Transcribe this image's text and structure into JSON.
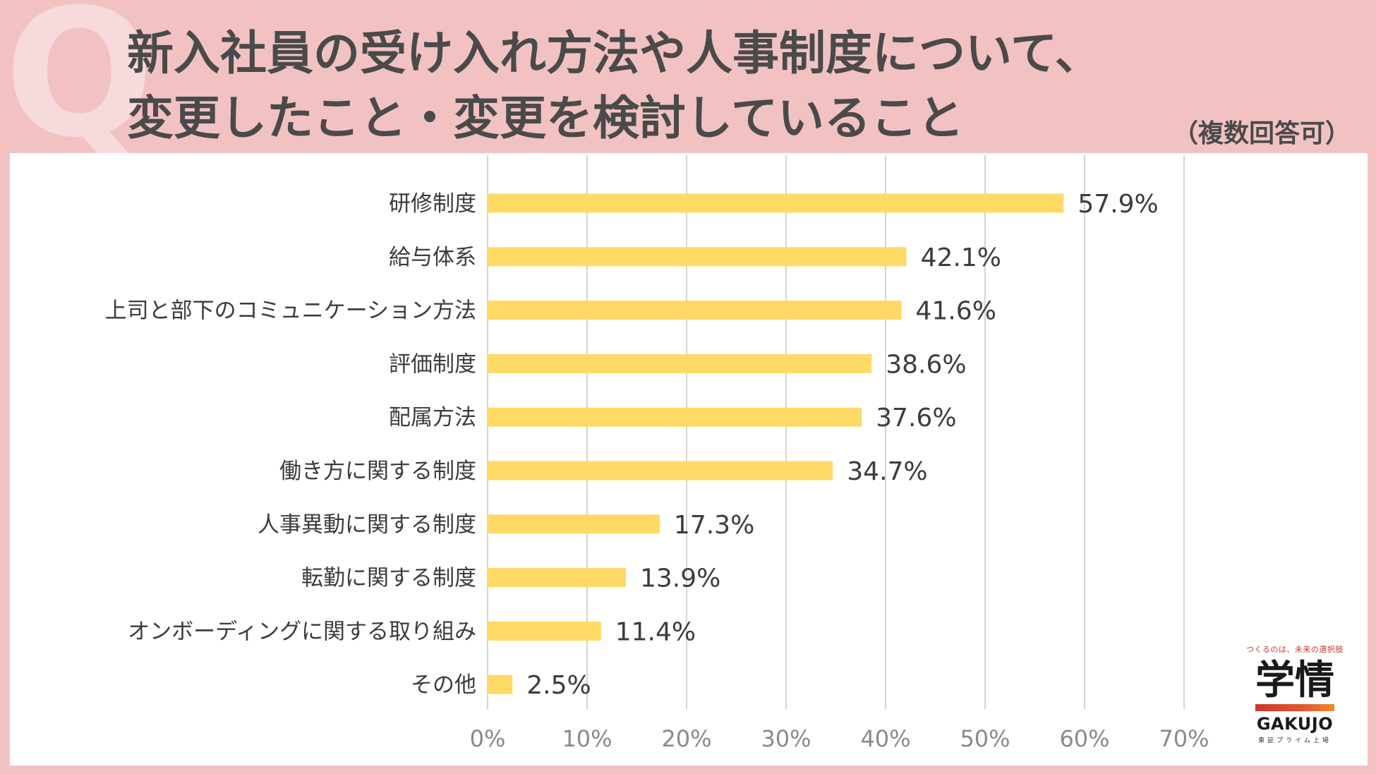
{
  "header": {
    "q_mark": "Q",
    "title_line1": "新入社員の受け入れ方法や人事制度について、",
    "title_line2": "変更したこと・変更を検討していること",
    "note": "（複数回答可）"
  },
  "logo": {
    "tagline": "つくるのは、未来の選択肢",
    "kanji": "学情",
    "name": "GAKUJO",
    "sub": "東証プライム上場"
  },
  "colors": {
    "background": "#F2C2C3",
    "bar": "#FFD966",
    "grid": "#D4D4D4",
    "text": "#3C3C3C",
    "tick": "#8A8A8A"
  },
  "chart_data": {
    "type": "bar",
    "orientation": "horizontal",
    "title": "",
    "xlabel": "",
    "ylabel": "",
    "categories": [
      "研修制度",
      "給与体系",
      "上司と部下のコミュニケーション方法",
      "評価制度",
      "配属方法",
      "働き方に関する制度",
      "人事異動に関する制度",
      "転勤に関する制度",
      "オンボーディングに関する取り組み",
      "その他"
    ],
    "values": [
      57.9,
      42.1,
      41.6,
      38.6,
      37.6,
      34.7,
      17.3,
      13.9,
      11.4,
      2.5
    ],
    "value_labels": [
      "57.9%",
      "42.1%",
      "41.6%",
      "38.6%",
      "37.6%",
      "34.7%",
      "17.3%",
      "13.9%",
      "11.4%",
      "2.5%"
    ],
    "xlim": [
      0,
      70
    ],
    "ticks": [
      0,
      10,
      20,
      30,
      40,
      50,
      60,
      70
    ],
    "tick_labels": [
      "0%",
      "10%",
      "20%",
      "30%",
      "40%",
      "50%",
      "60%",
      "70%"
    ],
    "grid": true,
    "legend": "none"
  }
}
